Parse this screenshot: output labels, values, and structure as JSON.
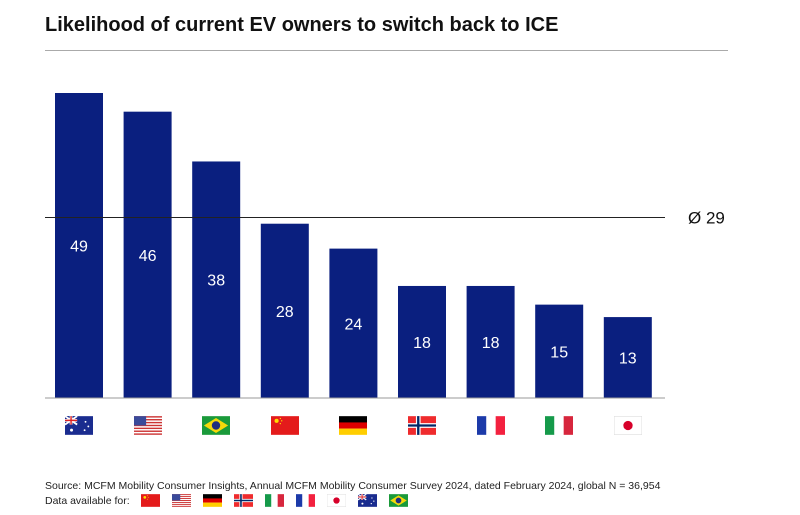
{
  "chart_data": {
    "type": "bar",
    "title": "Likelihood of current EV owners to switch back to ICE",
    "categories": [
      "Australia",
      "USA",
      "Brazil",
      "China",
      "Germany",
      "Norway",
      "France",
      "Italy",
      "Japan"
    ],
    "category_icons": [
      "au",
      "us",
      "br",
      "cn",
      "de",
      "no",
      "fr",
      "it",
      "jp"
    ],
    "values": [
      49,
      46,
      38,
      28,
      24,
      18,
      18,
      15,
      13
    ],
    "average": {
      "label": "Ø 29",
      "value": 29
    },
    "ylim": [
      0,
      50
    ],
    "xlabel": "",
    "ylabel": "",
    "grid": false,
    "bar_color": "#0a1f7f"
  },
  "footer": {
    "source": "Source: MCFM Mobility Consumer Insights, Annual MCFM Mobility Consumer Survey 2024, dated February 2024, global N = 36,954",
    "data_available_label": "Data available for:",
    "data_available_flags": [
      "cn",
      "us",
      "de",
      "no",
      "it",
      "fr",
      "jp",
      "au",
      "br"
    ]
  }
}
